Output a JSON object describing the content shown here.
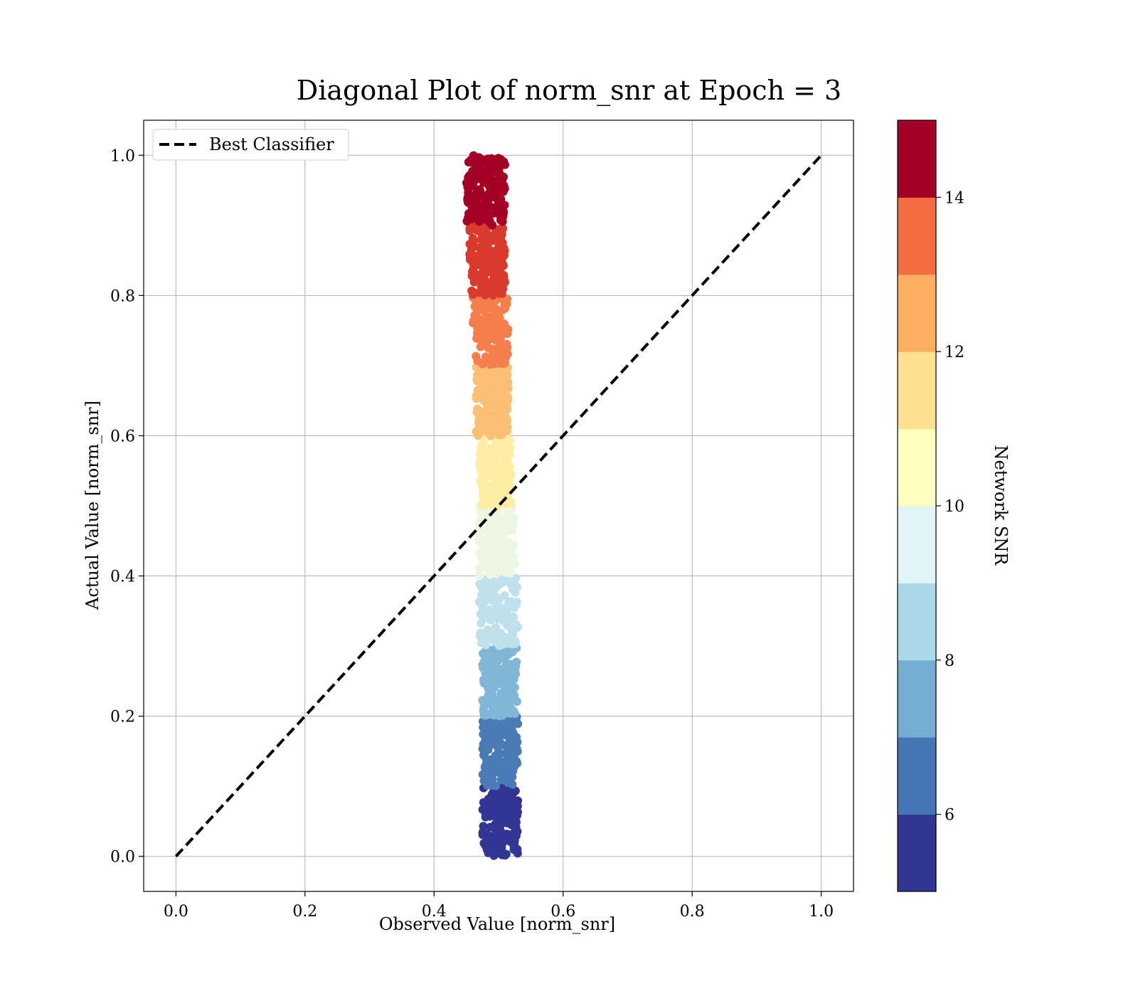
{
  "chart_data": {
    "type": "scatter",
    "title": "Diagonal Plot of norm_snr at Epoch = 3",
    "xlabel": "Observed Value [norm_snr]",
    "ylabel": "Actual Value [norm_snr]",
    "xlim": [
      -0.05,
      1.05
    ],
    "ylim": [
      -0.05,
      1.05
    ],
    "xticks": [
      "0.0",
      "0.2",
      "0.4",
      "0.6",
      "0.8",
      "1.0"
    ],
    "yticks": [
      "0.0",
      "0.2",
      "0.4",
      "0.6",
      "0.8",
      "1.0"
    ],
    "grid": true,
    "legend": {
      "placement": "upper-left",
      "entries": [
        "Best Classifier"
      ]
    },
    "reference_line": {
      "name": "Best Classifier",
      "style": "dashed",
      "color": "#000000",
      "x": [
        0,
        1
      ],
      "y": [
        0,
        1
      ]
    },
    "colorbar": {
      "label": "Network SNR",
      "range": [
        5,
        15
      ],
      "ticks": [
        "6",
        "8",
        "10",
        "12",
        "14"
      ],
      "colormap": "RdYlBu_r",
      "levels": [
        "#313695",
        "#4575b4",
        "#74add1",
        "#abd9e9",
        "#e0f3f8",
        "#ffffbf",
        "#fee090",
        "#fdae61",
        "#f46d43",
        "#a50026"
      ]
    },
    "points_summary": [
      {
        "snr_range": [
          5,
          6
        ],
        "color": "#313695",
        "y_range": [
          0.0,
          0.1
        ],
        "x_range": [
          0.475,
          0.53
        ]
      },
      {
        "snr_range": [
          6,
          7
        ],
        "color": "#4a7bb7",
        "y_range": [
          0.1,
          0.2
        ],
        "x_range": [
          0.475,
          0.53
        ]
      },
      {
        "snr_range": [
          7,
          8
        ],
        "color": "#80b6d6",
        "y_range": [
          0.2,
          0.3
        ],
        "x_range": [
          0.475,
          0.53
        ]
      },
      {
        "snr_range": [
          8,
          9
        ],
        "color": "#bfe1ec",
        "y_range": [
          0.3,
          0.4
        ],
        "x_range": [
          0.47,
          0.53
        ]
      },
      {
        "snr_range": [
          9,
          10
        ],
        "color": "#edf6e0",
        "y_range": [
          0.4,
          0.5
        ],
        "x_range": [
          0.47,
          0.525
        ]
      },
      {
        "snr_range": [
          10,
          11
        ],
        "color": "#feeea4",
        "y_range": [
          0.5,
          0.6
        ],
        "x_range": [
          0.47,
          0.52
        ]
      },
      {
        "snr_range": [
          11,
          12
        ],
        "color": "#fdbe75",
        "y_range": [
          0.6,
          0.7
        ],
        "x_range": [
          0.465,
          0.515
        ]
      },
      {
        "snr_range": [
          12,
          13
        ],
        "color": "#f57e4d",
        "y_range": [
          0.7,
          0.8
        ],
        "x_range": [
          0.46,
          0.515
        ]
      },
      {
        "snr_range": [
          13,
          14
        ],
        "color": "#d93a2d",
        "y_range": [
          0.8,
          0.9
        ],
        "x_range": [
          0.455,
          0.51
        ]
      },
      {
        "snr_range": [
          14,
          15
        ],
        "color": "#a50026",
        "y_range": [
          0.9,
          1.0
        ],
        "x_range": [
          0.45,
          0.51
        ]
      }
    ]
  }
}
